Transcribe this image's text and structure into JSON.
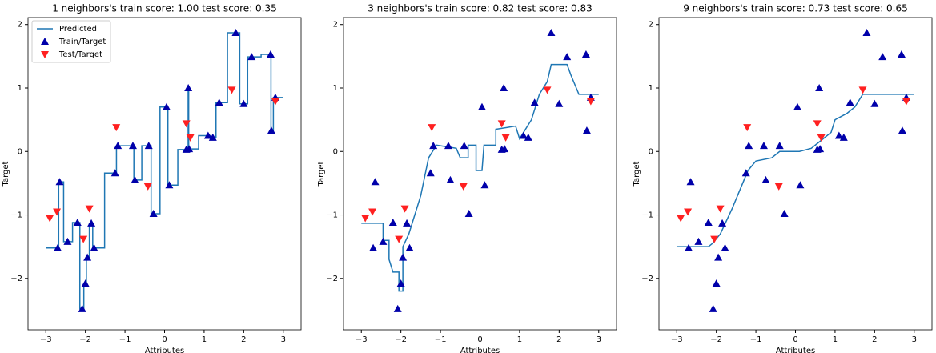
{
  "chart_data": [
    {
      "type": "line",
      "title": "1 neighbors's train score: 1.00 test score: 0.35",
      "x_label": "Attributes",
      "y_label": "Target",
      "xlim": [
        -3.45,
        3.45
      ],
      "ylim": [
        -2.81,
        2.11
      ],
      "xticks": [
        {
          "value": -3,
          "label": "−3"
        },
        {
          "value": -2,
          "label": "−2"
        },
        {
          "value": -1,
          "label": "−1"
        },
        0,
        1,
        2,
        3
      ],
      "yticks": [
        {
          "value": -2,
          "label": "−2"
        },
        {
          "value": -1,
          "label": "−1"
        },
        0,
        1,
        2
      ],
      "legend": "upper left",
      "series": [
        {
          "name": "Predicted",
          "color": "#1f77b4",
          "marker": "line",
          "x": [
            -3,
            -2.675,
            -2.675,
            -2.55,
            -2.55,
            -2.325,
            -2.325,
            -2.14,
            -2.14,
            -2.04,
            -2.04,
            -1.975,
            -1.975,
            -1.9,
            -1.9,
            -1.815,
            -1.815,
            -1.515,
            -1.515,
            -1.215,
            -1.215,
            -0.99,
            -0.99,
            -0.775,
            -0.775,
            -0.575,
            -0.575,
            -0.34,
            -0.34,
            -0.115,
            -0.115,
            0.085,
            0.085,
            0.335,
            0.335,
            0.575,
            0.575,
            0.61,
            0.61,
            0.86,
            0.86,
            1.16,
            1.16,
            1.3,
            1.3,
            1.59,
            1.59,
            1.9,
            1.9,
            2.1,
            2.1,
            2.44,
            2.44,
            2.69,
            2.69,
            2.75,
            2.75,
            3
          ],
          "values": [
            -1.52,
            -1.52,
            -0.48,
            -0.48,
            -1.42,
            -1.42,
            -1.12,
            -1.12,
            -2.48,
            -2.48,
            -2.08,
            -2.08,
            -1.67,
            -1.67,
            -1.13,
            -1.13,
            -1.52,
            -1.52,
            -0.34,
            -0.34,
            0.09,
            0.09,
            0.09,
            0.09,
            -0.45,
            -0.45,
            0.09,
            0.09,
            -0.98,
            -0.98,
            0.7,
            0.7,
            -0.53,
            -0.53,
            0.03,
            0.03,
            1.0,
            1.0,
            0.04,
            0.04,
            0.25,
            0.25,
            0.22,
            0.22,
            0.77,
            0.77,
            1.87,
            1.87,
            0.75,
            0.75,
            1.49,
            1.49,
            1.53,
            1.53,
            0.33,
            0.33,
            0.85,
            0.85
          ]
        },
        {
          "name": "Train/Target",
          "color": "#0000aa",
          "marker": "^",
          "x": [
            -2.7,
            -2.65,
            -2.45,
            -2.2,
            -2.08,
            -2.0,
            -1.95,
            -1.85,
            -1.78,
            -1.25,
            -1.18,
            -0.8,
            -0.75,
            -0.4,
            -0.28,
            0.05,
            0.12,
            0.55,
            0.6,
            0.62,
            1.1,
            1.22,
            1.38,
            1.8,
            2.0,
            2.2,
            2.68,
            2.7,
            2.8
          ],
          "values": [
            -1.52,
            -0.48,
            -1.42,
            -1.12,
            -2.48,
            -2.08,
            -1.67,
            -1.13,
            -1.52,
            -0.34,
            0.09,
            0.09,
            -0.45,
            0.09,
            -0.98,
            0.7,
            -0.53,
            0.03,
            1.0,
            0.04,
            0.25,
            0.22,
            0.77,
            1.87,
            0.75,
            1.49,
            1.53,
            0.33,
            0.85
          ]
        },
        {
          "name": "Test/Target",
          "color": "#ff2020",
          "marker": "v",
          "x": [
            -2.9,
            -2.72,
            -2.05,
            -1.9,
            -1.22,
            -0.42,
            0.55,
            0.65,
            1.7,
            2.8
          ],
          "values": [
            -1.05,
            -0.95,
            -1.38,
            -0.9,
            0.38,
            -0.55,
            0.44,
            0.22,
            0.97,
            0.79
          ]
        }
      ]
    },
    {
      "type": "line",
      "title": "3 neighbors's train score: 0.82 test score: 0.83",
      "x_label": "Attributes",
      "y_label": "Target",
      "xlim": [
        -3.45,
        3.45
      ],
      "ylim": [
        -2.81,
        2.11
      ],
      "xticks": [
        {
          "value": -3,
          "label": "−3"
        },
        {
          "value": -2,
          "label": "−2"
        },
        {
          "value": -1,
          "label": "−1"
        },
        0,
        1,
        2,
        3
      ],
      "yticks": [
        {
          "value": -2,
          "label": "−2"
        },
        {
          "value": -1,
          "label": "−1"
        },
        0,
        1,
        2
      ],
      "series": [
        {
          "color": "#1f77b4",
          "marker": "line",
          "x": [
            -3,
            -2.45,
            -2.45,
            -2.3,
            -2.3,
            -2.2,
            -2.05,
            -2.05,
            -1.95,
            -1.95,
            -1.8,
            -1.6,
            -1.5,
            -1.3,
            -1.1,
            -0.6,
            -0.5,
            -0.3,
            -0.3,
            -0.1,
            -0.1,
            0.05,
            0.1,
            0.4,
            0.4,
            0.9,
            1.0,
            1.3,
            1.5,
            1.7,
            1.8,
            2.2,
            2.3,
            2.5,
            3
          ],
          "values": [
            -1.13,
            -1.13,
            -1.4,
            -1.4,
            -1.7,
            -1.9,
            -1.9,
            -2.2,
            -2.2,
            -1.5,
            -1.3,
            -0.9,
            -0.7,
            -0.1,
            0.1,
            0.05,
            -0.1,
            -0.1,
            0.1,
            0.1,
            -0.3,
            -0.3,
            0.1,
            0.1,
            0.35,
            0.4,
            0.2,
            0.5,
            0.9,
            1.1,
            1.37,
            1.37,
            1.2,
            0.9,
            0.9
          ]
        },
        {
          "color": "#0000aa",
          "marker": "^",
          "x": [
            -2.7,
            -2.65,
            -2.45,
            -2.2,
            -2.08,
            -2.0,
            -1.95,
            -1.85,
            -1.78,
            -1.25,
            -1.18,
            -0.8,
            -0.75,
            -0.4,
            -0.28,
            0.05,
            0.12,
            0.55,
            0.6,
            0.62,
            1.1,
            1.22,
            1.38,
            1.8,
            2.0,
            2.2,
            2.68,
            2.7,
            2.8
          ],
          "values": [
            -1.52,
            -0.48,
            -1.42,
            -1.12,
            -2.48,
            -2.08,
            -1.67,
            -1.13,
            -1.52,
            -0.34,
            0.09,
            0.09,
            -0.45,
            0.09,
            -0.98,
            0.7,
            -0.53,
            0.03,
            1.0,
            0.04,
            0.25,
            0.22,
            0.77,
            1.87,
            0.75,
            1.49,
            1.53,
            0.33,
            0.85
          ]
        },
        {
          "color": "#ff2020",
          "marker": "v",
          "x": [
            -2.9,
            -2.72,
            -2.05,
            -1.9,
            -1.22,
            -0.42,
            0.55,
            0.65,
            1.7,
            2.8
          ],
          "values": [
            -1.05,
            -0.95,
            -1.38,
            -0.9,
            0.38,
            -0.55,
            0.44,
            0.22,
            0.97,
            0.79
          ]
        }
      ]
    },
    {
      "type": "line",
      "title": "9 neighbors's train score: 0.73 test score: 0.65",
      "x_label": "Attributes",
      "y_label": "Target",
      "xlim": [
        -3.45,
        3.45
      ],
      "ylim": [
        -2.81,
        2.11
      ],
      "xticks": [
        {
          "value": -3,
          "label": "−3"
        },
        {
          "value": -2,
          "label": "−2"
        },
        {
          "value": -1,
          "label": "−1"
        },
        0,
        1,
        2,
        3
      ],
      "yticks": [
        {
          "value": -2,
          "label": "−2"
        },
        {
          "value": -1,
          "label": "−1"
        },
        0,
        1,
        2
      ],
      "series": [
        {
          "color": "#1f77b4",
          "marker": "line",
          "x": [
            -3,
            -2.2,
            -2.1,
            -1.9,
            -1.6,
            -1.4,
            -1.2,
            -1.0,
            -0.6,
            -0.4,
            0.1,
            0.4,
            0.6,
            0.9,
            1.0,
            1.3,
            1.5,
            1.7,
            3
          ],
          "values": [
            -1.5,
            -1.5,
            -1.45,
            -1.3,
            -0.9,
            -0.6,
            -0.3,
            -0.15,
            -0.1,
            0,
            0,
            0.05,
            0.15,
            0.3,
            0.5,
            0.6,
            0.7,
            0.9,
            0.9
          ]
        },
        {
          "color": "#0000aa",
          "marker": "^",
          "x": [
            -2.7,
            -2.65,
            -2.45,
            -2.2,
            -2.08,
            -2.0,
            -1.95,
            -1.85,
            -1.78,
            -1.25,
            -1.18,
            -0.8,
            -0.75,
            -0.4,
            -0.28,
            0.05,
            0.12,
            0.55,
            0.6,
            0.62,
            1.1,
            1.22,
            1.38,
            1.8,
            2.0,
            2.2,
            2.68,
            2.7,
            2.8
          ],
          "values": [
            -1.52,
            -0.48,
            -1.42,
            -1.12,
            -2.48,
            -2.08,
            -1.67,
            -1.13,
            -1.52,
            -0.34,
            0.09,
            0.09,
            -0.45,
            0.09,
            -0.98,
            0.7,
            -0.53,
            0.03,
            1.0,
            0.04,
            0.25,
            0.22,
            0.77,
            1.87,
            0.75,
            1.49,
            1.53,
            0.33,
            0.85
          ]
        },
        {
          "color": "#ff2020",
          "marker": "v",
          "x": [
            -2.9,
            -2.72,
            -2.05,
            -1.9,
            -1.22,
            -0.42,
            0.55,
            0.65,
            1.7,
            2.8
          ],
          "values": [
            -1.05,
            -0.95,
            -1.38,
            -0.9,
            0.38,
            -0.55,
            0.44,
            0.22,
            0.97,
            0.79
          ]
        }
      ]
    }
  ]
}
